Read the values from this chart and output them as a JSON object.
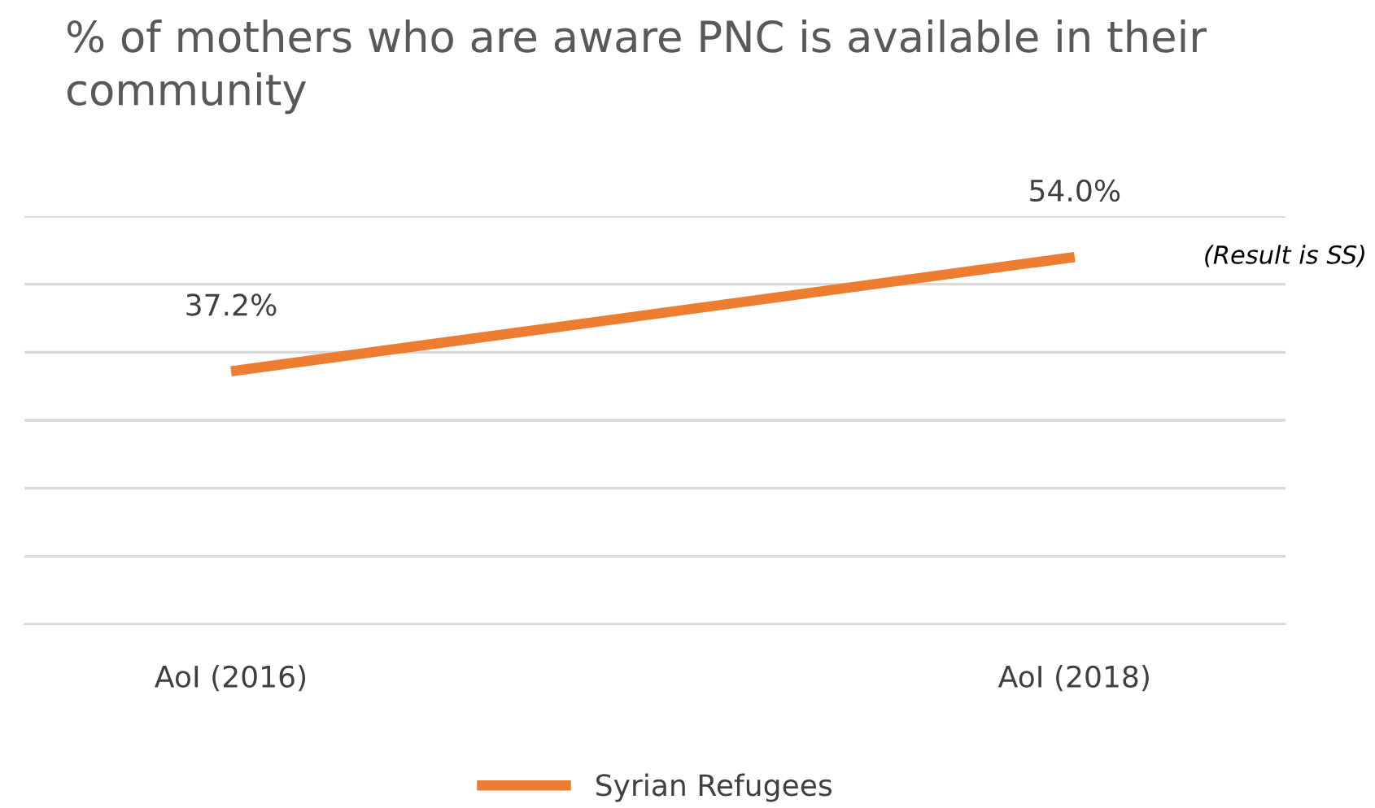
{
  "chart_data": {
    "type": "line",
    "title": "% of mothers who are aware PNC is available in their community",
    "categories": [
      "AoI (2016)",
      "AoI (2018)"
    ],
    "series": [
      {
        "name": "Syrian Refugees",
        "color": "#ed7d31",
        "values": [
          37.2,
          54.0
        ],
        "value_labels": [
          "37.2%",
          "54.0%"
        ]
      }
    ],
    "ylim": [
      0,
      60
    ],
    "yticks": [
      {
        "value": 0,
        "label": null
      },
      {
        "value": 10,
        "label": null
      },
      {
        "value": 20,
        "label": null
      },
      {
        "value": 30,
        "label": null
      },
      {
        "value": 40,
        "label": null
      },
      {
        "value": 50,
        "label": null
      },
      {
        "value": 60,
        "label": null
      }
    ],
    "tick_labels": "x",
    "grid": "y",
    "legend": "bottom",
    "marker": "none",
    "line_style": "solid",
    "annotations": [
      "(Result is SS)"
    ]
  }
}
